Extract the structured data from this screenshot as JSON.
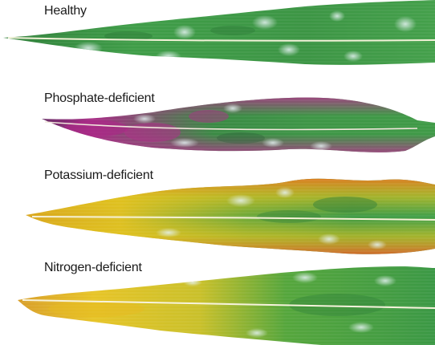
{
  "labels": {
    "healthy": "Healthy",
    "phosphate": "Phosphate-deficient",
    "potassium": "Potassium-deficient",
    "nitrogen": "Nitrogen-deficient"
  },
  "colors": {
    "healthy_green": "#3d9a45",
    "dark_green": "#2f7f3a",
    "purple": "#a52a83",
    "yellow": "#e3c21b",
    "orange": "#d9622a",
    "light_spot": "#cfe7ea"
  }
}
